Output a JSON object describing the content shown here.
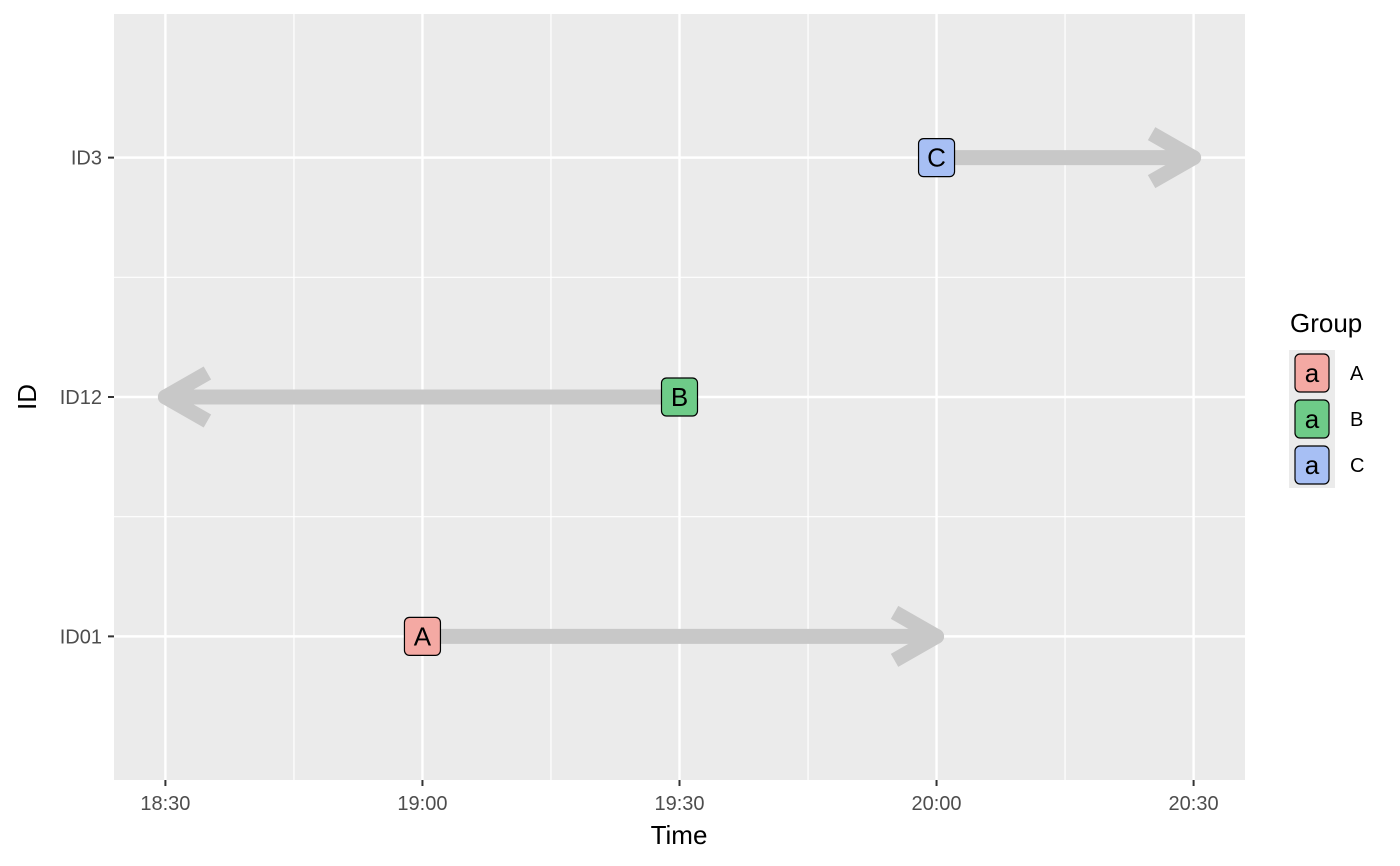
{
  "chart_data": {
    "type": "scatter",
    "title": "",
    "xlabel": "Time",
    "ylabel": "ID",
    "x_ticks": [
      "18:30",
      "19:00",
      "19:30",
      "20:00",
      "20:30"
    ],
    "y_categories": [
      "ID01",
      "ID12",
      "ID3"
    ],
    "xlim": [
      "18:24",
      "20:36"
    ],
    "grid": true,
    "legend": {
      "title": "Group",
      "position": "right",
      "key_glyph": "a",
      "items": [
        {
          "name": "A",
          "color": "#F4A9A3"
        },
        {
          "name": "B",
          "color": "#6ECB88"
        },
        {
          "name": "C",
          "color": "#A7BFF4"
        }
      ]
    },
    "arrow_color": "#C8C8C8",
    "panel_color": "#EBEBEB",
    "points": [
      {
        "id": "ID01",
        "group": "A",
        "label": "A",
        "start": "19:00",
        "end": "20:00"
      },
      {
        "id": "ID12",
        "group": "B",
        "label": "B",
        "start": "19:30",
        "end": "18:30"
      },
      {
        "id": "ID3",
        "group": "C",
        "label": "C",
        "start": "20:00",
        "end": "20:30"
      }
    ]
  }
}
